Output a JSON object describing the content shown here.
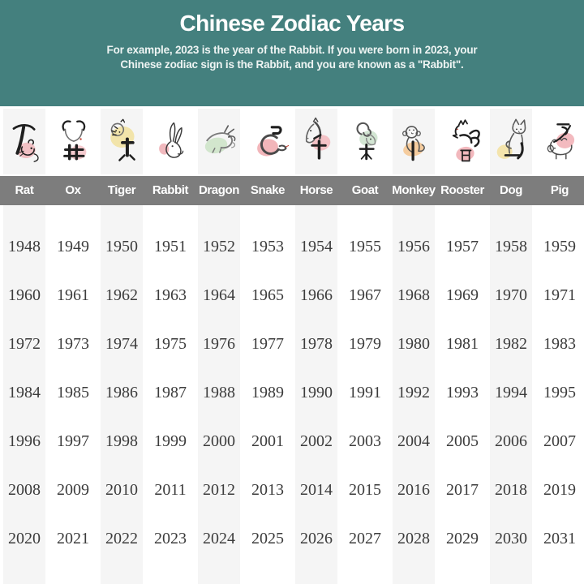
{
  "header": {
    "title": "Chinese Zodiac Years",
    "subtitle_line1": "For example, 2023 is the year of the Rabbit. If you were born in 2023, your",
    "subtitle_line2": "Chinese zodiac sign is the Rabbit, and you are known as a \"Rabbit\".",
    "bg_color": "#44807e",
    "text_color": "#ffffff"
  },
  "zodiac": {
    "label_band_color": "#7d7d7d",
    "column_stripe_color": "#f5f5f5",
    "animals": [
      {
        "name": "rat",
        "label": "Rat",
        "branch_character": "子",
        "blob_color": "#f0b6bb"
      },
      {
        "name": "ox",
        "label": "Ox",
        "branch_character": "丑",
        "blob_color": "#f3c1c5"
      },
      {
        "name": "tiger",
        "label": "Tiger",
        "branch_character": "寅",
        "blob_color": "#f1e09c"
      },
      {
        "name": "rabbit",
        "label": "Rabbit",
        "branch_character": "卯",
        "blob_color": "#efadb3"
      },
      {
        "name": "dragon",
        "label": "Dragon",
        "branch_character": "辰",
        "blob_color": "#cbe3c6"
      },
      {
        "name": "snake",
        "label": "Snake",
        "branch_character": "巳",
        "blob_color": "#f0a9ae"
      },
      {
        "name": "horse",
        "label": "Horse",
        "branch_character": "午",
        "blob_color": "#f3b8bd"
      },
      {
        "name": "goat",
        "label": "Goat",
        "branch_character": "未",
        "blob_color": "#cbe2cb"
      },
      {
        "name": "monkey",
        "label": "Monkey",
        "branch_character": "申",
        "blob_color": "#f5c48e"
      },
      {
        "name": "rooster",
        "label": "Rooster",
        "branch_character": "酉",
        "blob_color": "#f0acb2"
      },
      {
        "name": "dog",
        "label": "Dog",
        "branch_character": "戌",
        "blob_color": "#f3e19f"
      },
      {
        "name": "pig",
        "label": "Pig",
        "branch_character": "亥",
        "blob_color": "#f1aeb4"
      }
    ]
  },
  "years_text_color": "#3c3c3c",
  "chart_data": {
    "type": "table",
    "title": "Chinese Zodiac Years",
    "subtitle": "For example, 2023 is the year of the Rabbit. If you were born in 2023, your Chinese zodiac sign is the Rabbit, and you are known as a \"Rabbit\".",
    "columns": [
      "Rat",
      "Ox",
      "Tiger",
      "Rabbit",
      "Dragon",
      "Snake",
      "Horse",
      "Goat",
      "Monkey",
      "Rooster",
      "Dog",
      "Pig"
    ],
    "rows": [
      [
        1948,
        1949,
        1950,
        1951,
        1952,
        1953,
        1954,
        1955,
        1956,
        1957,
        1958,
        1959
      ],
      [
        1960,
        1961,
        1962,
        1963,
        1964,
        1965,
        1966,
        1967,
        1968,
        1969,
        1970,
        1971
      ],
      [
        1972,
        1973,
        1974,
        1975,
        1976,
        1977,
        1978,
        1979,
        1980,
        1981,
        1982,
        1983
      ],
      [
        1984,
        1985,
        1986,
        1987,
        1988,
        1989,
        1990,
        1991,
        1992,
        1993,
        1994,
        1995
      ],
      [
        1996,
        1997,
        1998,
        1999,
        2000,
        2001,
        2002,
        2003,
        2004,
        2005,
        2006,
        2007
      ],
      [
        2008,
        2009,
        2010,
        2011,
        2012,
        2013,
        2014,
        2015,
        2016,
        2017,
        2018,
        2019
      ],
      [
        2020,
        2021,
        2022,
        2023,
        2024,
        2025,
        2026,
        2027,
        2028,
        2029,
        2030,
        2031
      ]
    ],
    "layout": {
      "grid": false,
      "header_row_style": "gray-band",
      "alternating_column_stripes": true
    }
  }
}
